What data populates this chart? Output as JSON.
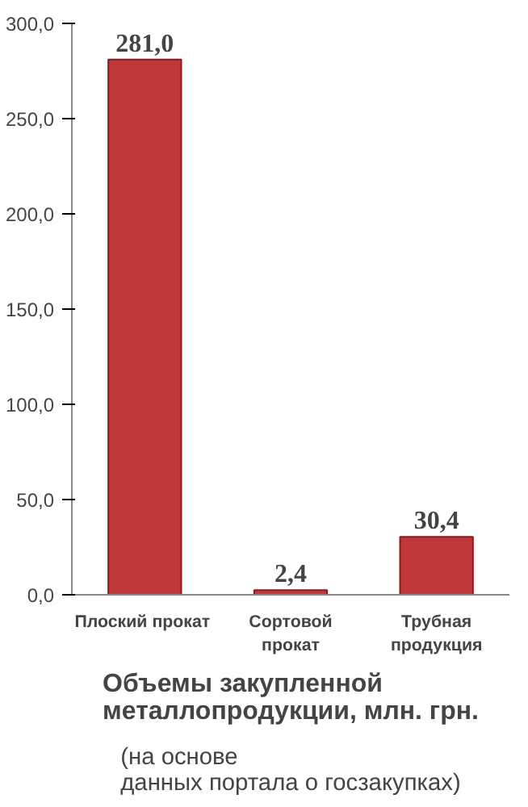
{
  "chart_data": {
    "type": "bar",
    "title": "Объемы закупленной\nметаллопродукции, млн. грн.",
    "annotations": [
      "(на основе\nданных портала о госзакупках)"
    ],
    "categories": [
      "Плоский  прокат",
      "Сортовой\nпрокат",
      "Трубная\nпродукция"
    ],
    "values": [
      281.0,
      2.4,
      30.4
    ],
    "value_labels": [
      "281,0",
      "2,4",
      "30,4"
    ],
    "color": "#c0383a",
    "ylim": [
      0,
      300
    ],
    "yticks": [
      {
        "value": 0,
        "label": "0,0"
      },
      {
        "value": 50,
        "label": "50,0"
      },
      {
        "value": 100,
        "label": "100,0"
      },
      {
        "value": 150,
        "label": "150,0"
      },
      {
        "value": 200,
        "label": "200,0"
      },
      {
        "value": 250,
        "label": "250,0"
      },
      {
        "value": 300,
        "label": "300,0"
      }
    ],
    "grid": false
  }
}
